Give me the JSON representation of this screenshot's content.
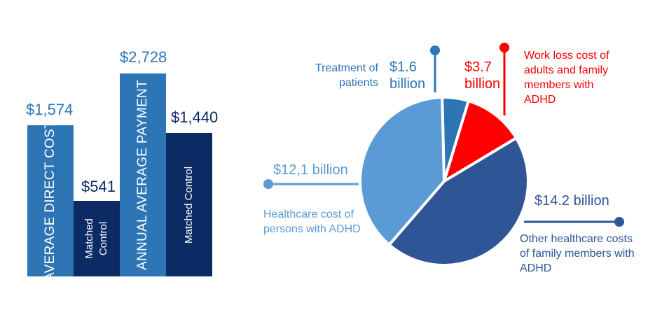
{
  "colors": {
    "bar_light": "#2e75b6",
    "bar_dark": "#0c2a63",
    "pie_light": "#5b9bd5",
    "pie_dark": "#2f5597",
    "pie_mid": "#2e75b6",
    "red": "#ff0000"
  },
  "bars": {
    "direct": {
      "label": "AVERAGE DIRECT COST",
      "value": "$1,574",
      "amount": 1574
    },
    "direct_control": {
      "label": [
        "Matched",
        "Control"
      ],
      "value": "$541",
      "amount": 541
    },
    "annual": {
      "label": "ANNUAL AVERAGE PAYMENT",
      "value": "$2,728",
      "amount": 2728
    },
    "annual_control": {
      "label": "Matched  Control",
      "value": "$1,440",
      "amount": 1440
    }
  },
  "chart_data": {
    "type": "pie",
    "slices": [
      {
        "name": "Treatment of patients",
        "value": 1.6,
        "amount_label": "$1.6 billion"
      },
      {
        "name": "Work loss cost of adults and family members with ADHD",
        "value": 3.7,
        "amount_label": "$3.7 billion"
      },
      {
        "name": "Other healthcare costs of family members with ADHD",
        "value": 14.2,
        "amount_label": "$14.2 billion"
      },
      {
        "name": "Healthcare cost of persons with ADHD",
        "value": 12.1,
        "amount_label": "$12,1 billion"
      }
    ]
  },
  "pie_labels": {
    "treatment": {
      "line1": "Treatment of",
      "line2": "patients",
      "amt1": "$1.6",
      "amt2": "billion"
    },
    "workloss": {
      "line1": "Work loss cost of",
      "line2": "adults and family",
      "line3": "members with",
      "line4": "ADHD",
      "amt1": "$3.7",
      "amt2": "billion"
    },
    "other": {
      "amount": "$14.2 billion",
      "line1": "Other healthcare costs",
      "line2": "of family members with",
      "line3": "ADHD"
    },
    "persons": {
      "amount": "$12,1 billion",
      "line1": "Healthcare cost of",
      "line2": "persons with ADHD"
    }
  }
}
